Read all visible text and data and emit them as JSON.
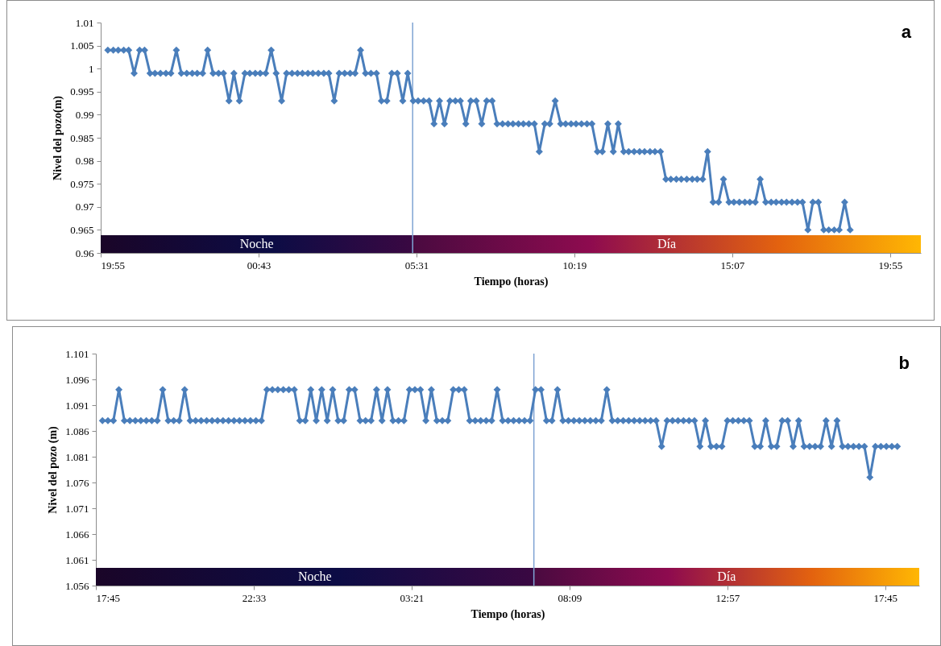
{
  "chart_data": [
    {
      "type": "line",
      "title": "a",
      "xlabel": "Tiempo (horas)",
      "ylabel": "Nivel del pozo(m)",
      "marker": "diamond",
      "grid": false,
      "xlim": [
        "--01-01T19:55",
        "--01-02T20:51"
      ],
      "xticks": [
        {
          "value": "--01-01T19:55",
          "label": "19:55"
        },
        {
          "value": "--01-02T00:43",
          "label": "00:43"
        },
        {
          "value": "--01-02T05:31",
          "label": "05:31"
        },
        {
          "value": "--01-02T10:19",
          "label": "10:19"
        },
        {
          "value": "--01-02T15:07",
          "label": "15:07"
        },
        {
          "value": "--01-02T19:55",
          "label": "19:55"
        }
      ],
      "ylim": [
        0.96,
        1.01
      ],
      "yticks": [
        0.96,
        0.965,
        0.97,
        0.975,
        0.98,
        0.985,
        0.99,
        0.995,
        1,
        1.005,
        1.01
      ],
      "ref_lines": [
        {
          "axis": "x",
          "value": "--01-02T05:24",
          "color": "#7fa3d3"
        }
      ],
      "bands": [
        {
          "axis": "x",
          "from": "--01-01T19:55",
          "to": "--01-02T05:24",
          "label": "Noche",
          "color": "#0c0c45"
        },
        {
          "axis": "x",
          "from": "--01-02T05:24",
          "to": "--01-02T20:51",
          "label": "Día",
          "color": "#e3620f"
        }
      ],
      "series": [
        {
          "color": "#4a7ebb",
          "x": [
            "--01-01T20:08",
            "--01-01T20:18",
            "--01-01T20:27",
            "--01-01T20:37",
            "--01-01T20:46",
            "--01-01T20:56",
            "--01-01T21:06",
            "--01-01T21:15",
            "--01-01T21:25",
            "--01-01T21:34",
            "--01-01T21:44",
            "--01-01T21:54",
            "--01-01T22:03",
            "--01-01T22:13",
            "--01-01T22:22",
            "--01-01T22:32",
            "--01-01T22:42",
            "--01-01T22:51",
            "--01-01T23:01",
            "--01-01T23:10",
            "--01-01T23:20",
            "--01-01T23:30",
            "--01-01T23:39",
            "--01-01T23:49",
            "--01-01T23:58",
            "--01-02T00:08",
            "--01-02T00:18",
            "--01-02T00:27",
            "--01-02T00:37",
            "--01-02T00:46",
            "--01-02T00:56",
            "--01-02T01:06",
            "--01-02T01:15",
            "--01-02T01:25",
            "--01-02T01:34",
            "--01-02T01:44",
            "--01-02T01:54",
            "--01-02T02:03",
            "--01-02T02:13",
            "--01-02T02:22",
            "--01-02T02:32",
            "--01-02T02:42",
            "--01-02T02:51",
            "--01-02T03:01",
            "--01-02T03:10",
            "--01-02T03:20",
            "--01-02T03:30",
            "--01-02T03:39",
            "--01-02T03:49",
            "--01-02T03:58",
            "--01-02T04:08",
            "--01-02T04:18",
            "--01-02T04:27",
            "--01-02T04:37",
            "--01-02T04:46",
            "--01-02T04:56",
            "--01-02T05:06",
            "--01-02T05:15",
            "--01-02T05:25",
            "--01-02T05:34",
            "--01-02T05:44",
            "--01-02T05:54",
            "--01-02T06:03",
            "--01-02T06:13",
            "--01-02T06:22",
            "--01-02T06:32",
            "--01-02T06:42",
            "--01-02T06:51",
            "--01-02T07:01",
            "--01-02T07:10",
            "--01-02T07:20",
            "--01-02T07:30",
            "--01-02T07:39",
            "--01-02T07:49",
            "--01-02T07:58",
            "--01-02T08:08",
            "--01-02T08:18",
            "--01-02T08:27",
            "--01-02T08:37",
            "--01-02T08:46",
            "--01-02T08:56",
            "--01-02T09:06",
            "--01-02T09:15",
            "--01-02T09:25",
            "--01-02T09:34",
            "--01-02T09:44",
            "--01-02T09:54",
            "--01-02T10:03",
            "--01-02T10:13",
            "--01-02T10:22",
            "--01-02T10:32",
            "--01-02T10:42",
            "--01-02T10:51",
            "--01-02T11:01",
            "--01-02T11:10",
            "--01-02T11:20",
            "--01-02T11:30",
            "--01-02T11:39",
            "--01-02T11:49",
            "--01-02T11:58",
            "--01-02T12:08",
            "--01-02T12:18",
            "--01-02T12:27",
            "--01-02T12:37",
            "--01-02T12:46",
            "--01-02T12:56",
            "--01-02T13:06",
            "--01-02T13:15",
            "--01-02T13:25",
            "--01-02T13:34",
            "--01-02T13:44",
            "--01-02T13:54",
            "--01-02T14:03",
            "--01-02T14:13",
            "--01-02T14:22",
            "--01-02T14:32",
            "--01-02T14:42",
            "--01-02T14:51",
            "--01-02T15:01",
            "--01-02T15:10",
            "--01-02T15:20",
            "--01-02T15:30",
            "--01-02T15:39",
            "--01-02T15:49",
            "--01-02T15:58",
            "--01-02T16:08",
            "--01-02T16:18",
            "--01-02T16:27",
            "--01-02T16:37",
            "--01-02T16:46",
            "--01-02T16:56",
            "--01-02T17:06",
            "--01-02T17:15",
            "--01-02T17:25",
            "--01-02T17:34",
            "--01-02T17:44",
            "--01-02T17:54",
            "--01-02T18:03",
            "--01-02T18:13",
            "--01-02T18:22",
            "--01-02T18:32",
            "--01-02T18:42"
          ],
          "values": [
            1.004,
            1.004,
            1.004,
            1.004,
            1.004,
            0.999,
            1.004,
            1.004,
            0.999,
            0.999,
            0.999,
            0.999,
            0.999,
            1.004,
            0.999,
            0.999,
            0.999,
            0.999,
            0.999,
            1.004,
            0.999,
            0.999,
            0.999,
            0.993,
            0.999,
            0.993,
            0.999,
            0.999,
            0.999,
            0.999,
            0.999,
            1.004,
            0.999,
            0.993,
            0.999,
            0.999,
            0.999,
            0.999,
            0.999,
            0.999,
            0.999,
            0.999,
            0.999,
            0.993,
            0.999,
            0.999,
            0.999,
            0.999,
            1.004,
            0.999,
            0.999,
            0.999,
            0.993,
            0.993,
            0.999,
            0.999,
            0.993,
            0.999,
            0.993,
            0.993,
            0.993,
            0.993,
            0.988,
            0.993,
            0.988,
            0.993,
            0.993,
            0.993,
            0.988,
            0.993,
            0.993,
            0.988,
            0.993,
            0.993,
            0.988,
            0.988,
            0.988,
            0.988,
            0.988,
            0.988,
            0.988,
            0.988,
            0.982,
            0.988,
            0.988,
            0.993,
            0.988,
            0.988,
            0.988,
            0.988,
            0.988,
            0.988,
            0.988,
            0.982,
            0.982,
            0.988,
            0.982,
            0.988,
            0.982,
            0.982,
            0.982,
            0.982,
            0.982,
            0.982,
            0.982,
            0.982,
            0.976,
            0.976,
            0.976,
            0.976,
            0.976,
            0.976,
            0.976,
            0.976,
            0.982,
            0.971,
            0.971,
            0.976,
            0.971,
            0.971,
            0.971,
            0.971,
            0.971,
            0.971,
            0.976,
            0.971,
            0.971,
            0.971,
            0.971,
            0.971,
            0.971,
            0.971,
            0.971,
            0.965,
            0.971,
            0.971,
            0.965,
            0.965,
            0.965,
            0.965,
            0.971,
            0.965
          ]
        }
      ]
    },
    {
      "type": "line",
      "title": "b",
      "xlabel": "Tiempo (horas)",
      "ylabel": "Nivel del pozo (m)",
      "marker": "diamond",
      "grid": false,
      "xlim": [
        "--01-01T17:45",
        "--01-02T18:47"
      ],
      "xticks": [
        {
          "value": "--01-01T17:45",
          "label": "17:45"
        },
        {
          "value": "--01-01T22:33",
          "label": "22:33"
        },
        {
          "value": "--01-02T03:21",
          "label": "03:21"
        },
        {
          "value": "--01-02T08:09",
          "label": "08:09"
        },
        {
          "value": "--01-02T12:57",
          "label": "12:57"
        },
        {
          "value": "--01-02T17:45",
          "label": "17:45"
        }
      ],
      "ylim": [
        1.056,
        1.101
      ],
      "yticks": [
        1.056,
        1.061,
        1.066,
        1.071,
        1.076,
        1.081,
        1.086,
        1.091,
        1.096,
        1.101
      ],
      "ref_lines": [
        {
          "axis": "x",
          "value": "--01-02T07:04",
          "color": "#7fa3d3"
        }
      ],
      "bands": [
        {
          "axis": "x",
          "from": "--01-01T17:45",
          "to": "--01-02T07:04",
          "label": "Noche",
          "color": "#0c0c45"
        },
        {
          "axis": "x",
          "from": "--01-02T07:04",
          "to": "--01-02T18:47",
          "label": "Día",
          "color": "#e3620f"
        }
      ],
      "series": [
        {
          "color": "#4a7ebb",
          "x": [
            "--01-01T17:57",
            "--01-01T18:07",
            "--01-01T18:17",
            "--01-01T18:27",
            "--01-01T18:37",
            "--01-01T18:47",
            "--01-01T18:57",
            "--01-01T19:07",
            "--01-01T19:17",
            "--01-01T19:27",
            "--01-01T19:37",
            "--01-01T19:47",
            "--01-01T19:57",
            "--01-01T20:07",
            "--01-01T20:17",
            "--01-01T20:27",
            "--01-01T20:37",
            "--01-01T20:47",
            "--01-01T20:57",
            "--01-01T21:07",
            "--01-01T21:17",
            "--01-01T21:27",
            "--01-01T21:37",
            "--01-01T21:47",
            "--01-01T21:57",
            "--01-01T22:07",
            "--01-01T22:17",
            "--01-01T22:27",
            "--01-01T22:37",
            "--01-01T22:47",
            "--01-01T22:57",
            "--01-01T23:07",
            "--01-01T23:17",
            "--01-01T23:27",
            "--01-01T23:37",
            "--01-01T23:47",
            "--01-01T23:57",
            "--01-02T00:07",
            "--01-02T00:17",
            "--01-02T00:27",
            "--01-02T00:37",
            "--01-02T00:47",
            "--01-02T00:57",
            "--01-02T01:07",
            "--01-02T01:17",
            "--01-02T01:27",
            "--01-02T01:37",
            "--01-02T01:47",
            "--01-02T01:57",
            "--01-02T02:07",
            "--01-02T02:17",
            "--01-02T02:27",
            "--01-02T02:37",
            "--01-02T02:47",
            "--01-02T02:57",
            "--01-02T03:07",
            "--01-02T03:17",
            "--01-02T03:27",
            "--01-02T03:37",
            "--01-02T03:47",
            "--01-02T03:57",
            "--01-02T04:07",
            "--01-02T04:17",
            "--01-02T04:27",
            "--01-02T04:37",
            "--01-02T04:47",
            "--01-02T04:57",
            "--01-02T05:07",
            "--01-02T05:17",
            "--01-02T05:27",
            "--01-02T05:37",
            "--01-02T05:47",
            "--01-02T05:57",
            "--01-02T06:07",
            "--01-02T06:17",
            "--01-02T06:27",
            "--01-02T06:37",
            "--01-02T06:47",
            "--01-02T06:57",
            "--01-02T07:07",
            "--01-02T07:17",
            "--01-02T07:27",
            "--01-02T07:37",
            "--01-02T07:47",
            "--01-02T07:57",
            "--01-02T08:07",
            "--01-02T08:17",
            "--01-02T08:27",
            "--01-02T08:37",
            "--01-02T08:47",
            "--01-02T08:57",
            "--01-02T09:07",
            "--01-02T09:17",
            "--01-02T09:27",
            "--01-02T09:37",
            "--01-02T09:47",
            "--01-02T09:57",
            "--01-02T10:07",
            "--01-02T10:17",
            "--01-02T10:27",
            "--01-02T10:37",
            "--01-02T10:47",
            "--01-02T10:57",
            "--01-02T11:07",
            "--01-02T11:17",
            "--01-02T11:27",
            "--01-02T11:37",
            "--01-02T11:47",
            "--01-02T11:57",
            "--01-02T12:07",
            "--01-02T12:17",
            "--01-02T12:27",
            "--01-02T12:37",
            "--01-02T12:47",
            "--01-02T12:57",
            "--01-02T13:07",
            "--01-02T13:17",
            "--01-02T13:27",
            "--01-02T13:37",
            "--01-02T13:47",
            "--01-02T13:57",
            "--01-02T14:07",
            "--01-02T14:17",
            "--01-02T14:27",
            "--01-02T14:37",
            "--01-02T14:47",
            "--01-02T14:57",
            "--01-02T15:07",
            "--01-02T15:17",
            "--01-02T15:27",
            "--01-02T15:37",
            "--01-02T15:47",
            "--01-02T15:57",
            "--01-02T16:07",
            "--01-02T16:17",
            "--01-02T16:27",
            "--01-02T16:37",
            "--01-02T16:47",
            "--01-02T16:57",
            "--01-02T17:07",
            "--01-02T17:17",
            "--01-02T17:27",
            "--01-02T17:37",
            "--01-02T17:47",
            "--01-02T17:57",
            "--01-02T18:07"
          ],
          "values": [
            1.088,
            1.088,
            1.088,
            1.094,
            1.088,
            1.088,
            1.088,
            1.088,
            1.088,
            1.088,
            1.088,
            1.094,
            1.088,
            1.088,
            1.088,
            1.094,
            1.088,
            1.088,
            1.088,
            1.088,
            1.088,
            1.088,
            1.088,
            1.088,
            1.088,
            1.088,
            1.088,
            1.088,
            1.088,
            1.088,
            1.094,
            1.094,
            1.094,
            1.094,
            1.094,
            1.094,
            1.088,
            1.088,
            1.094,
            1.088,
            1.094,
            1.088,
            1.094,
            1.088,
            1.088,
            1.094,
            1.094,
            1.088,
            1.088,
            1.088,
            1.094,
            1.088,
            1.094,
            1.088,
            1.088,
            1.088,
            1.094,
            1.094,
            1.094,
            1.088,
            1.094,
            1.088,
            1.088,
            1.088,
            1.094,
            1.094,
            1.094,
            1.088,
            1.088,
            1.088,
            1.088,
            1.088,
            1.094,
            1.088,
            1.088,
            1.088,
            1.088,
            1.088,
            1.088,
            1.094,
            1.094,
            1.088,
            1.088,
            1.094,
            1.088,
            1.088,
            1.088,
            1.088,
            1.088,
            1.088,
            1.088,
            1.088,
            1.094,
            1.088,
            1.088,
            1.088,
            1.088,
            1.088,
            1.088,
            1.088,
            1.088,
            1.088,
            1.083,
            1.088,
            1.088,
            1.088,
            1.088,
            1.088,
            1.088,
            1.083,
            1.088,
            1.083,
            1.083,
            1.083,
            1.088,
            1.088,
            1.088,
            1.088,
            1.088,
            1.083,
            1.083,
            1.088,
            1.083,
            1.083,
            1.088,
            1.088,
            1.083,
            1.088,
            1.083,
            1.083,
            1.083,
            1.083,
            1.088,
            1.083,
            1.088,
            1.083,
            1.083,
            1.083,
            1.083,
            1.083,
            1.077,
            1.083,
            1.083,
            1.083,
            1.083,
            1.083
          ]
        }
      ]
    }
  ]
}
